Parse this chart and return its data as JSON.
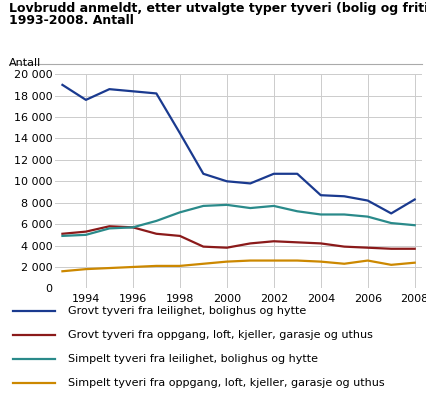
{
  "title_line1": "Lovbrudd anmeldt, etter utvalgte typer tyveri (bolig og fritidshus).",
  "title_line2": "1993-2008. Antall",
  "ylabel": "Antall",
  "years": [
    1993,
    1994,
    1995,
    1996,
    1997,
    1998,
    1999,
    2000,
    2001,
    2002,
    2003,
    2004,
    2005,
    2006,
    2007,
    2008
  ],
  "series": [
    {
      "label": "Grovt tyveri fra leilighet, bolighus og hytte",
      "color": "#1a3a8f",
      "values": [
        19000,
        17600,
        18600,
        18400,
        18200,
        14500,
        10700,
        10000,
        9800,
        10700,
        10700,
        8700,
        8600,
        8200,
        7000,
        8300
      ]
    },
    {
      "label": "Grovt tyveri fra oppgang, loft, kjeller, garasje og uthus",
      "color": "#8B1a1a",
      "values": [
        5100,
        5300,
        5800,
        5700,
        5100,
        4900,
        3900,
        3800,
        4200,
        4400,
        4300,
        4200,
        3900,
        3800,
        3700,
        3700
      ]
    },
    {
      "label": "Simpelt tyveri fra leilighet, bolighus og hytte",
      "color": "#2a8a8a",
      "values": [
        4900,
        5000,
        5600,
        5700,
        6300,
        7100,
        7700,
        7800,
        7500,
        7700,
        7200,
        6900,
        6900,
        6700,
        6100,
        5900
      ]
    },
    {
      "label": "Simpelt tyveri fra oppgang, loft, kjeller, garasje og uthus",
      "color": "#cc8800",
      "values": [
        1600,
        1800,
        1900,
        2000,
        2100,
        2100,
        2300,
        2500,
        2600,
        2600,
        2600,
        2500,
        2300,
        2600,
        2200,
        2400
      ]
    }
  ],
  "ylim": [
    0,
    20000
  ],
  "yticks": [
    0,
    2000,
    4000,
    6000,
    8000,
    10000,
    12000,
    14000,
    16000,
    18000,
    20000
  ],
  "xticks": [
    1994,
    1996,
    1998,
    2000,
    2002,
    2004,
    2006,
    2008
  ],
  "background_color": "#ffffff",
  "grid_color": "#cccccc",
  "title_fontsize": 9,
  "axis_label_fontsize": 8,
  "tick_fontsize": 8,
  "legend_fontsize": 8,
  "line_width": 1.6
}
